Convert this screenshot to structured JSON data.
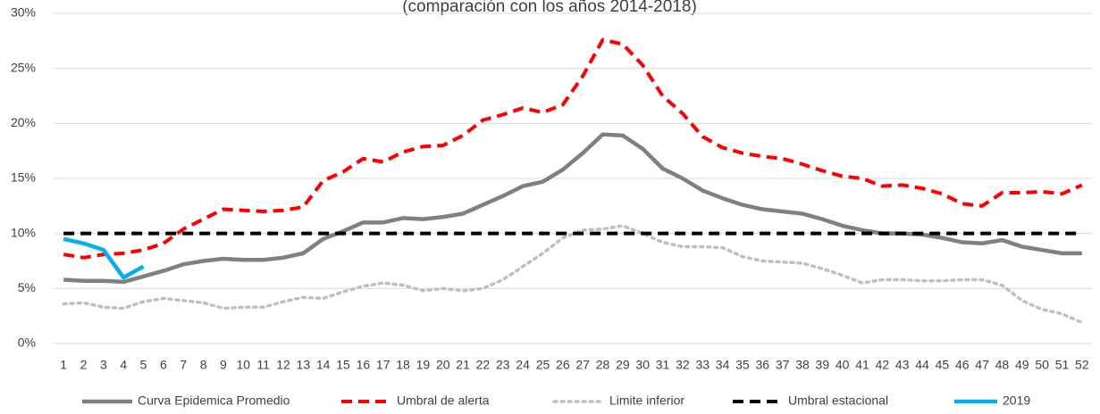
{
  "chart_data": {
    "type": "line",
    "subtitle": "(comparación con los años 2014-2018)",
    "categories": [
      1,
      2,
      3,
      4,
      5,
      6,
      7,
      8,
      9,
      10,
      11,
      12,
      13,
      14,
      15,
      16,
      17,
      18,
      19,
      20,
      21,
      22,
      23,
      24,
      25,
      26,
      27,
      28,
      29,
      30,
      31,
      32,
      33,
      34,
      35,
      36,
      37,
      38,
      39,
      40,
      41,
      42,
      43,
      44,
      45,
      46,
      47,
      48,
      49,
      50,
      51,
      52
    ],
    "ylim": [
      0,
      30
    ],
    "yticks": [
      {
        "value": 0,
        "label": "0%"
      },
      {
        "value": 5,
        "label": "5%"
      },
      {
        "value": 10,
        "label": "10%"
      },
      {
        "value": 15,
        "label": "15%"
      },
      {
        "value": 20,
        "label": "20%"
      },
      {
        "value": 25,
        "label": "25%"
      },
      {
        "value": 30,
        "label": "30%"
      }
    ],
    "grid": true,
    "legend": "bottom",
    "series": [
      {
        "name": "Curva Epidemica Promedio",
        "color": "#808080",
        "style": "solid",
        "values": [
          5.8,
          5.7,
          5.7,
          5.6,
          6.1,
          6.6,
          7.2,
          7.5,
          7.7,
          7.6,
          7.6,
          7.8,
          8.2,
          9.5,
          10.2,
          11.0,
          11.0,
          11.4,
          11.3,
          11.5,
          11.8,
          12.6,
          13.4,
          14.3,
          14.7,
          15.8,
          17.3,
          19.0,
          18.9,
          17.7,
          15.9,
          15.0,
          13.9,
          13.2,
          12.6,
          12.2,
          12.0,
          11.8,
          11.3,
          10.7,
          10.3,
          10.0,
          10.0,
          9.9,
          9.6,
          9.2,
          9.1,
          9.4,
          8.8,
          8.5,
          8.2,
          8.2
        ]
      },
      {
        "name": "Umbral de alerta",
        "color": "#ff0000",
        "style": "dashed",
        "values": [
          8.1,
          7.8,
          8.1,
          8.2,
          8.5,
          9.1,
          10.4,
          11.3,
          12.2,
          12.1,
          12.0,
          12.1,
          12.4,
          14.8,
          15.6,
          16.8,
          16.5,
          17.4,
          17.9,
          18.0,
          18.9,
          20.3,
          20.8,
          21.4,
          21.0,
          21.7,
          24.3,
          27.6,
          27.2,
          25.3,
          22.5,
          20.9,
          18.8,
          17.8,
          17.3,
          17.0,
          16.8,
          16.3,
          15.7,
          15.2,
          15.0,
          14.3,
          14.4,
          14.1,
          13.6,
          12.7,
          12.5,
          13.7,
          13.7,
          13.8,
          13.6,
          14.4
        ]
      },
      {
        "name": "Limite inferior",
        "color": "#bfbfbf",
        "style": "dotted",
        "values": [
          3.6,
          3.7,
          3.3,
          3.2,
          3.8,
          4.1,
          3.9,
          3.7,
          3.2,
          3.3,
          3.3,
          3.8,
          4.2,
          4.1,
          4.7,
          5.2,
          5.5,
          5.3,
          4.8,
          5.0,
          4.8,
          5.0,
          5.8,
          7.0,
          8.2,
          9.6,
          10.3,
          10.4,
          10.7,
          10.0,
          9.2,
          8.8,
          8.8,
          8.7,
          7.9,
          7.5,
          7.4,
          7.3,
          6.8,
          6.2,
          5.5,
          5.8,
          5.8,
          5.7,
          5.7,
          5.8,
          5.8,
          5.3,
          3.9,
          3.1,
          2.7,
          1.9
        ]
      },
      {
        "name": "Umbral estacional",
        "color": "#000000",
        "style": "dashed",
        "values": [
          10,
          10,
          10,
          10,
          10,
          10,
          10,
          10,
          10,
          10,
          10,
          10,
          10,
          10,
          10,
          10,
          10,
          10,
          10,
          10,
          10,
          10,
          10,
          10,
          10,
          10,
          10,
          10,
          10,
          10,
          10,
          10,
          10,
          10,
          10,
          10,
          10,
          10,
          10,
          10,
          10,
          10,
          10,
          10,
          10,
          10,
          10,
          10,
          10,
          10,
          10,
          10
        ]
      },
      {
        "name": "2019",
        "color": "#00b0f0",
        "style": "solid",
        "values": [
          9.5,
          9.1,
          8.5,
          6.0,
          7.0,
          null,
          null,
          null,
          null,
          null,
          null,
          null,
          null,
          null,
          null,
          null,
          null,
          null,
          null,
          null,
          null,
          null,
          null,
          null,
          null,
          null,
          null,
          null,
          null,
          null,
          null,
          null,
          null,
          null,
          null,
          null,
          null,
          null,
          null,
          null,
          null,
          null,
          null,
          null,
          null,
          null,
          null,
          null,
          null,
          null,
          null,
          null
        ]
      }
    ]
  }
}
